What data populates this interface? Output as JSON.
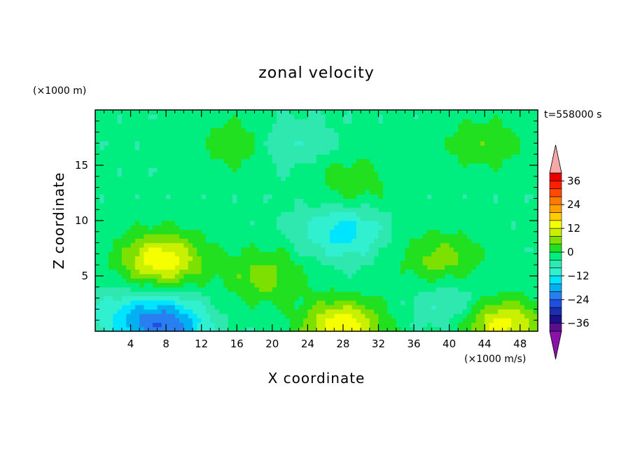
{
  "chart_data": {
    "type": "heatmap",
    "title": "zonal velocity",
    "xlabel": "X coordinate",
    "ylabel": "Z coordinate",
    "y_unit": "(×1000 m)",
    "value_unit": "(×1000 m/s)",
    "time_label": "t=558000 s",
    "xlim": [
      0,
      50
    ],
    "ylim": [
      0,
      20
    ],
    "x_ticks": [
      4,
      8,
      12,
      16,
      20,
      24,
      28,
      32,
      36,
      40,
      44,
      48
    ],
    "y_ticks": [
      5,
      10,
      15
    ],
    "colorbar": {
      "levels": [
        -40,
        -36,
        -32,
        -28,
        -24,
        -20,
        -16,
        -12,
        -8,
        -4,
        0,
        4,
        8,
        12,
        16,
        20,
        24,
        28,
        32,
        36,
        40
      ],
      "colors": [
        "#5a0f8f",
        "#1e0f8a",
        "#1a2fb0",
        "#1e4fe0",
        "#2a7ff0",
        "#00b0f0",
        "#00e5ff",
        "#30f0d0",
        "#2ee8b0",
        "#00ee80",
        "#20e020",
        "#7de000",
        "#c8f000",
        "#f5ff00",
        "#ffcc00",
        "#ffa000",
        "#ff7a00",
        "#ff4a00",
        "#ff2000",
        "#e80000"
      ],
      "labels": [
        "36",
        "24",
        "12",
        "0",
        "-12",
        "-24",
        "-36"
      ],
      "label_values": [
        36,
        24,
        12,
        0,
        -12,
        -24,
        -36
      ],
      "under_color": "#8a12a8",
      "over_color": "#f4a8a8"
    },
    "features": [
      {
        "x": 7.5,
        "z": 6.5,
        "value": 15
      },
      {
        "x": 8,
        "z": 0.6,
        "value": -22
      },
      {
        "x": 3,
        "z": 1.5,
        "value": -10
      },
      {
        "x": 28,
        "z": 0.5,
        "value": 15
      },
      {
        "x": 46,
        "z": 0.6,
        "value": 14
      },
      {
        "x": 19,
        "z": 5,
        "value": 6
      },
      {
        "x": 39,
        "z": 6.5,
        "value": 6
      },
      {
        "x": 28,
        "z": 9,
        "value": -14
      },
      {
        "x": 40,
        "z": 2.5,
        "value": -9
      },
      {
        "x": 16,
        "z": 17,
        "value": 3
      },
      {
        "x": 44,
        "z": 17,
        "value": 3
      },
      {
        "x": 29,
        "z": 13.5,
        "value": 3
      },
      {
        "x": 22,
        "z": 17,
        "value": -8
      }
    ]
  }
}
